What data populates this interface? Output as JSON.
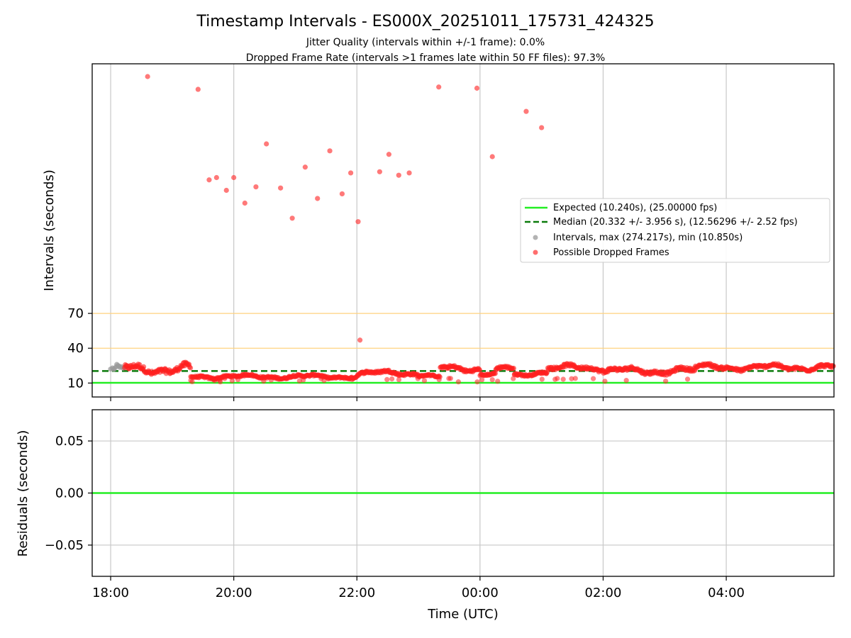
{
  "chart_data": [
    {
      "type": "scatter",
      "title": "Timestamp Intervals - ES000X_20251011_175731_424325",
      "subtitle_lines": [
        "Jitter Quality (intervals within +/-1 frame): 0.0%",
        "Dropped Frame Rate (intervals >1 frames late within 50 FF files): 97.3%"
      ],
      "xlabel": "",
      "ylabel": "Intervals (seconds)",
      "x_unit": "hours since 18:00 UTC",
      "xlim": [
        -0.3,
        11.75
      ],
      "ylim": [
        -2,
        285
      ],
      "yticks": [
        10,
        40,
        70
      ],
      "xtick_positions": [
        0,
        2,
        4,
        6,
        8,
        10
      ],
      "grid": "vertical",
      "reference_lines": [
        {
          "y": 10.24,
          "name": "Expected (10.240s), (25.00000 fps)",
          "style": "solid",
          "color": "#22ee22"
        },
        {
          "y": 20.332,
          "name": "Median (20.332 +/- 3.956 s), (12.56296 +/- 2.52 fps)",
          "style": "dashed",
          "color": "#0b7a0b"
        },
        {
          "y": 40,
          "name": "",
          "style": "solid",
          "color": "#ffd27f"
        },
        {
          "y": 70,
          "name": "",
          "style": "solid",
          "color": "#ffd27f"
        }
      ],
      "series": [
        {
          "name": "Intervals, max (274.217s), min (10.850s)",
          "color": "#999999",
          "x": [
            0.0,
            0.03,
            0.06,
            0.09,
            0.12,
            0.15,
            0.18,
            0.2,
            0.22,
            0.05,
            0.1,
            0.14
          ],
          "y": [
            22,
            23,
            22.5,
            24,
            25,
            23.5,
            24,
            22.8,
            23.2,
            21.8,
            26,
            24.5
          ]
        },
        {
          "name": "Possible Dropped Frames",
          "color": "#ff2020",
          "outliers": {
            "x": [
              0.6,
              1.42,
              1.6,
              1.72,
              1.88,
              2.0,
              2.18,
              2.36,
              2.53,
              2.76,
              2.95,
              3.16,
              3.36,
              3.56,
              3.76,
              3.9,
              4.02,
              4.37,
              4.52,
              4.68,
              4.85,
              5.33,
              5.95,
              6.2,
              6.75,
              7.0,
              4.05
            ],
            "y": [
              274,
              263,
              185,
              187,
              176,
              187,
              165,
              179,
              216,
              178,
              152,
              196,
              169,
              210,
              173,
              191,
              149,
              192,
              207,
              189,
              191,
              265,
              264,
              205,
              244,
              230,
              47
            ]
          },
          "bands": [
            {
              "from": 0.22,
              "to": 1.3,
              "center": 22,
              "amp": 5,
              "phase": 0.0
            },
            {
              "from": 1.3,
              "to": 4.0,
              "center": 15.5,
              "amp": 2,
              "phase": 1.1
            },
            {
              "from": 4.0,
              "to": 5.0,
              "center": 18.5,
              "amp": 2.5,
              "phase": 0.4
            },
            {
              "from": 5.0,
              "to": 5.35,
              "center": 15.5,
              "amp": 1.5,
              "phase": 2.0
            },
            {
              "from": 5.35,
              "to": 6.0,
              "center": 22.5,
              "amp": 3,
              "phase": 0.7
            },
            {
              "from": 6.0,
              "to": 6.25,
              "center": 17,
              "amp": 1.5,
              "phase": 1.6
            },
            {
              "from": 6.25,
              "to": 6.55,
              "center": 22,
              "amp": 2.5,
              "phase": 0.3
            },
            {
              "from": 6.55,
              "to": 7.1,
              "center": 18,
              "amp": 2,
              "phase": 2.4
            },
            {
              "from": 7.1,
              "to": 8.0,
              "center": 23,
              "amp": 3,
              "phase": 0.9
            },
            {
              "from": 8.0,
              "to": 9.5,
              "center": 20.5,
              "amp": 3.5,
              "phase": 1.7
            },
            {
              "from": 9.5,
              "to": 11.75,
              "center": 23.5,
              "amp": 3,
              "phase": 0.2
            }
          ]
        }
      ]
    },
    {
      "type": "line",
      "title": "",
      "xlabel": "Time (UTC)",
      "ylabel": "Residuals (seconds)",
      "xlim": [
        -0.3,
        11.75
      ],
      "ylim": [
        -0.08,
        0.08
      ],
      "ytick_values": [
        0.05,
        0.0,
        -0.05
      ],
      "ytick_labels": [
        "0.05",
        "0.00",
        "−0.05"
      ],
      "xtick_positions": [
        0,
        2,
        4,
        6,
        8,
        10
      ],
      "xtick_labels": [
        "18:00",
        "20:00",
        "22:00",
        "00:00",
        "02:00",
        "04:00"
      ],
      "grid": "both",
      "series": [
        {
          "name": "residuals",
          "color": "#22ee22",
          "x": [
            -0.3,
            11.75
          ],
          "y": [
            0,
            0
          ]
        }
      ]
    }
  ]
}
